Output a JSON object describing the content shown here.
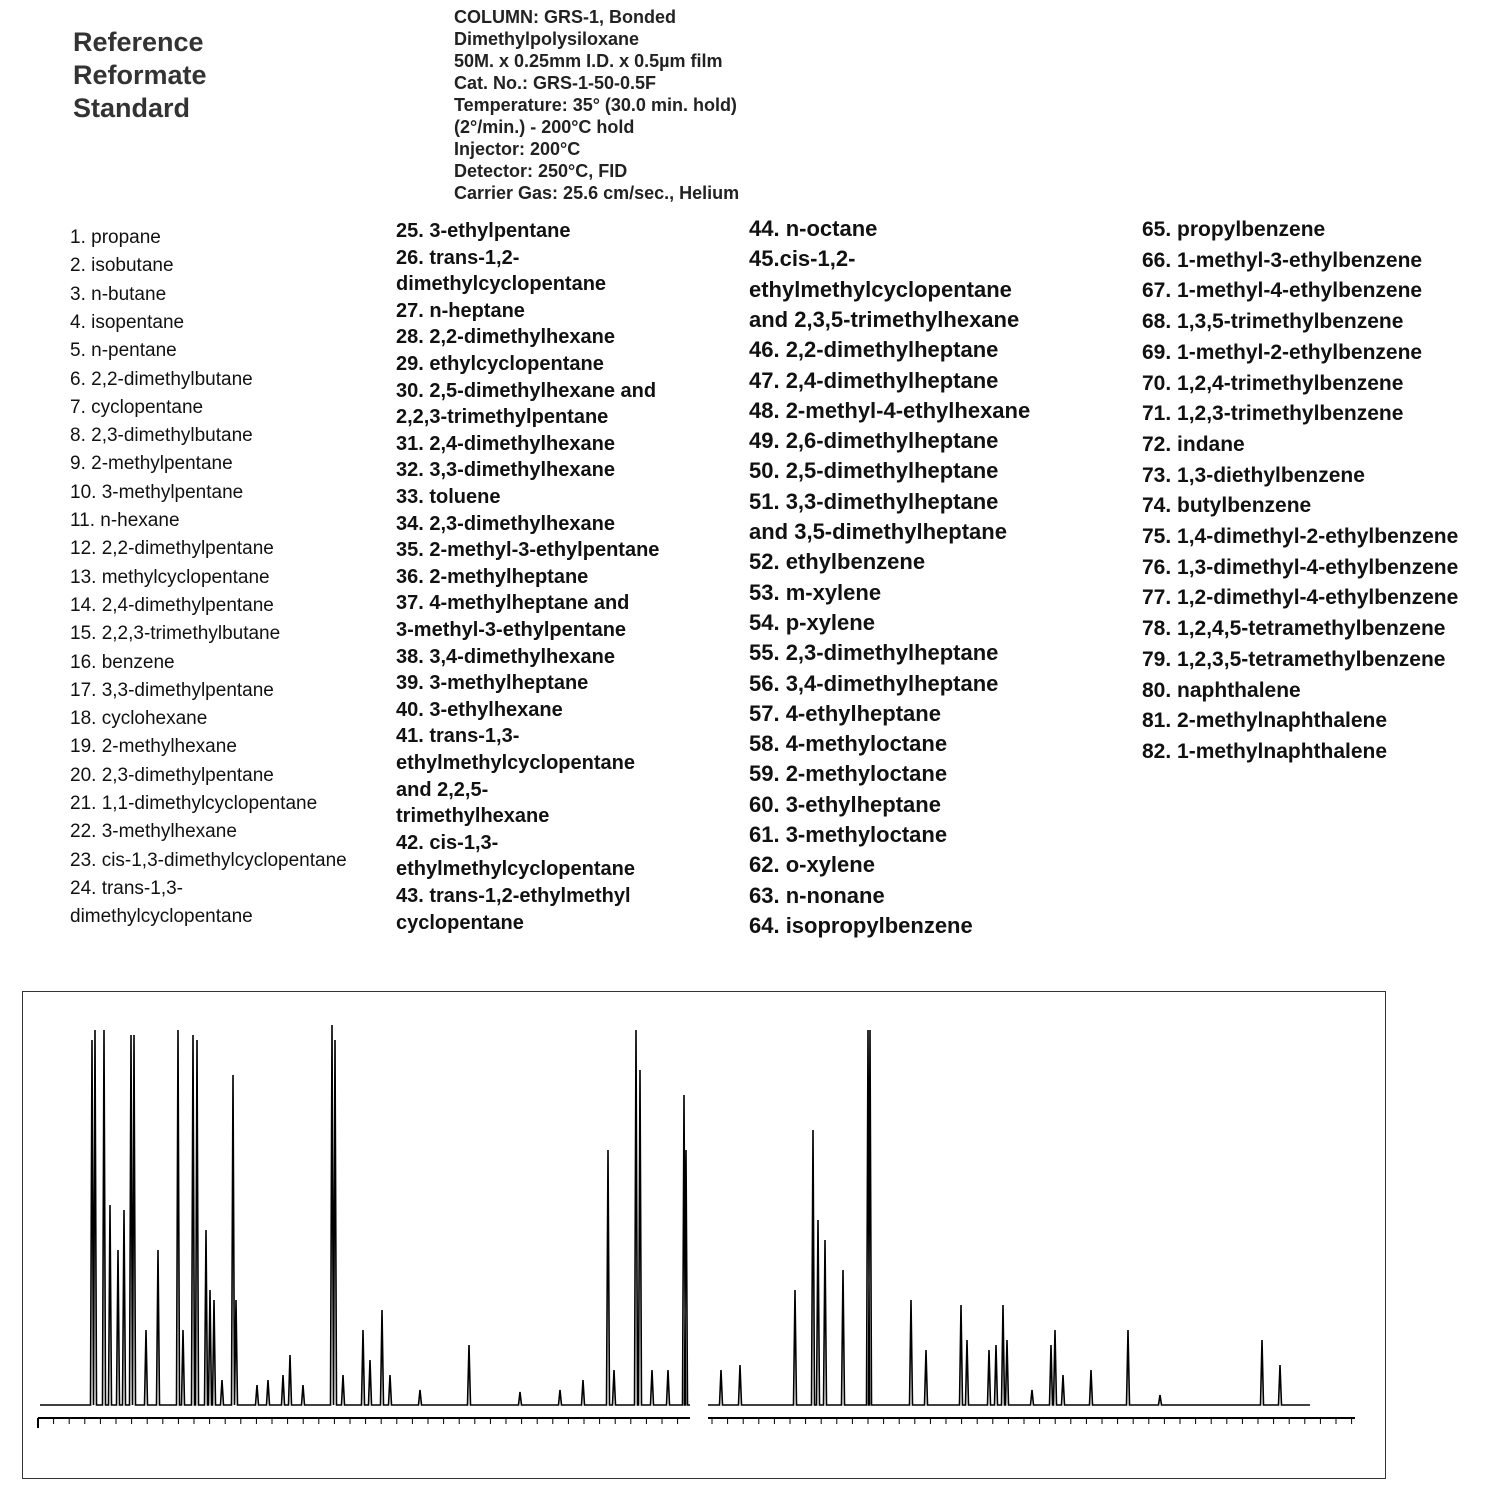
{
  "header": {
    "title": [
      "Reference",
      "Reformate",
      "Standard"
    ],
    "conditions": [
      "COLUMN:  GRS-1, Bonded",
      "Dimethylpolysiloxane",
      "50M. x 0.25mm I.D. x 0.5µm film",
      "Cat. No.: GRS-1-50-0.5F",
      "Temperature: 35° (30.0 min. hold)",
      "(2°/min.) - 200°C hold",
      "Injector: 200°C",
      "Detector: 250°C, FID",
      "Carrier Gas: 25.6 cm/sec., Helium"
    ]
  },
  "compounds": [
    [
      "1. propane",
      "2. isobutane",
      "3. n-butane",
      "4. isopentane",
      "5. n-pentane",
      "6. 2,2-dimethylbutane",
      "7. cyclopentane",
      "8. 2,3-dimethylbutane",
      "9. 2-methylpentane",
      "10. 3-methylpentane",
      "11. n-hexane",
      "12. 2,2-dimethylpentane",
      "13. methylcyclopentane",
      "14. 2,4-dimethylpentane",
      "15. 2,2,3-trimethylbutane",
      "16. benzene",
      "17. 3,3-dimethylpentane",
      "18. cyclohexane",
      "19. 2-methylhexane",
      "20. 2,3-dimethylpentane",
      "21. 1,1-dimethylcyclopentane",
      "22. 3-methylhexane",
      "23. cis-1,3-dimethylcyclopentane",
      "24. trans-1,3-",
      "dimethylcyclopentane"
    ],
    [
      "25. 3-ethylpentane",
      "26. trans-1,2-",
      "dimethylcyclopentane",
      "27. n-heptane",
      "28. 2,2-dimethylhexane",
      "29. ethylcyclopentane",
      "30. 2,5-dimethylhexane and",
      "2,2,3-trimethylpentane",
      "31. 2,4-dimethylhexane",
      "32. 3,3-dimethylhexane",
      "33. toluene",
      "34. 2,3-dimethylhexane",
      "35. 2-methyl-3-ethylpentane",
      "36. 2-methylheptane",
      "37. 4-methylheptane and",
      "3-methyl-3-ethylpentane",
      "38. 3,4-dimethylhexane",
      "39. 3-methylheptane",
      "40. 3-ethylhexane",
      "41. trans-1,3-",
      "ethylmethylcyclopentane",
      "and 2,2,5-",
      "trimethylhexane",
      "42. cis-1,3-",
      "ethylmethylcyclopentane",
      "43. trans-1,2-ethylmethyl",
      "cyclopentane"
    ],
    [
      "44. n-octane",
      "45.cis-1,2-",
      "ethylmethylcyclopentane",
      "and 2,3,5-trimethylhexane",
      "46. 2,2-dimethylheptane",
      "47. 2,4-dimethylheptane",
      "48. 2-methyl-4-ethylhexane",
      "49. 2,6-dimethylheptane",
      "50. 2,5-dimethylheptane",
      "51. 3,3-dimethylheptane",
      "and 3,5-dimethylheptane",
      "52. ethylbenzene",
      "53. m-xylene",
      "54. p-xylene",
      "55. 2,3-dimethylheptane",
      "56. 3,4-dimethylheptane",
      "57. 4-ethylheptane",
      "58. 4-methyloctane",
      "59. 2-methyloctane",
      "60. 3-ethylheptane",
      "61. 3-methyloctane",
      "62. o-xylene",
      "63. n-nonane",
      "64. isopropylbenzene"
    ],
    [
      "65. propylbenzene",
      "66. 1-methyl-3-ethylbenzene",
      "67. 1-methyl-4-ethylbenzene",
      "68. 1,3,5-trimethylbenzene",
      "69. 1-methyl-2-ethylbenzene",
      "70. 1,2,4-trimethylbenzene",
      "71. 1,2,3-trimethylbenzene",
      "72. indane",
      "73. 1,3-diethylbenzene",
      "74. butylbenzene",
      "75. 1,4-dimethyl-2-ethylbenzene",
      "76. 1,3-dimethyl-4-ethylbenzene",
      "77. 1,2-dimethyl-4-ethylbenzene",
      "78. 1,2,4,5-tetramethylbenzene",
      "79. 1,2,3,5-tetramethylbenzene",
      "80. naphthalene",
      "81. 2-methylnaphthalene",
      "82. 1-methylnaphthalene"
    ]
  ]
}
